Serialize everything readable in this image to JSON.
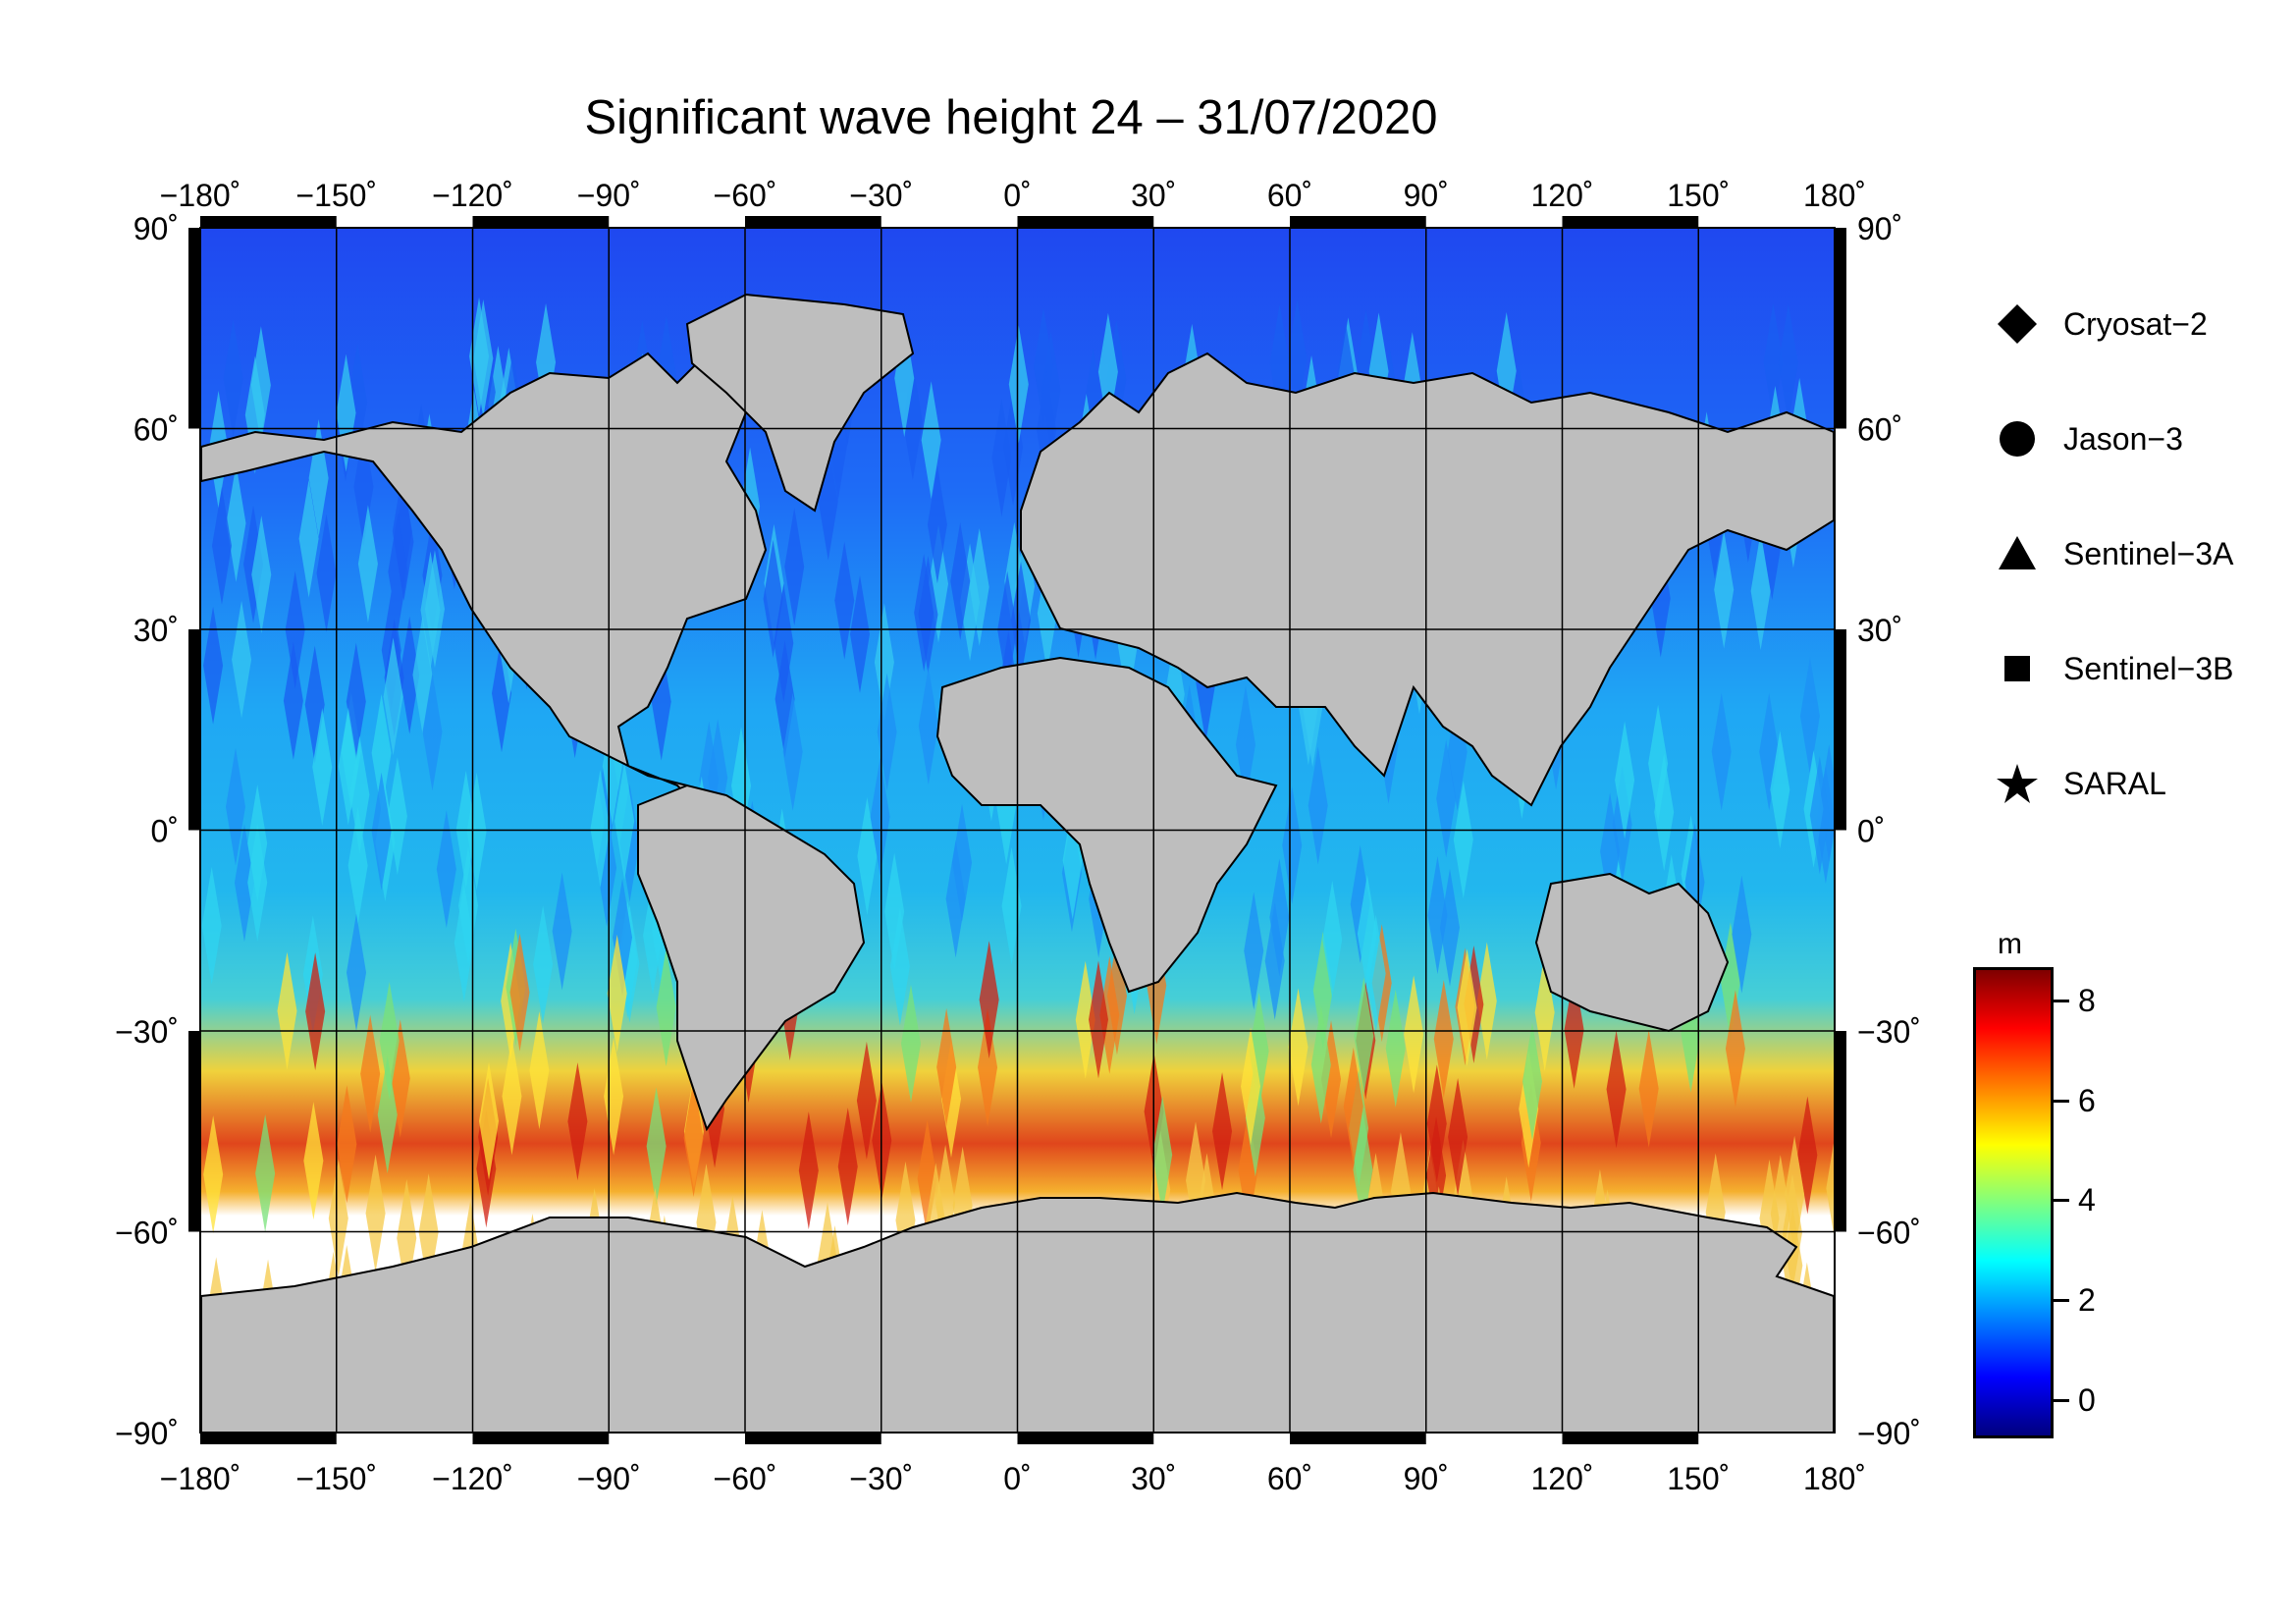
{
  "title": "Significant wave height 24 – 31/07/2020",
  "map": {
    "lon_ticks": [
      "−180˚",
      "−150˚",
      "−120˚",
      "−90˚",
      "−60˚",
      "−30˚",
      "0˚",
      "30˚",
      "60˚",
      "90˚",
      "120˚",
      "150˚",
      "180˚"
    ],
    "lat_ticks": [
      "90˚",
      "60˚",
      "30˚",
      "0˚",
      "−30˚",
      "−60˚",
      "−90˚"
    ],
    "lon_range": [
      -180,
      180
    ],
    "lat_range": [
      -90,
      90
    ],
    "land_color": "#bebebe",
    "ice_color": "#ffffff",
    "grid": true
  },
  "legend": {
    "items": [
      {
        "label": "Cryosat−2",
        "marker": "diamond"
      },
      {
        "label": "Jason−3",
        "marker": "circle"
      },
      {
        "label": "Sentinel−3A",
        "marker": "triangle"
      },
      {
        "label": "Sentinel−3B",
        "marker": "square"
      },
      {
        "label": "SARAL",
        "marker": "star"
      }
    ]
  },
  "colorbar": {
    "unit": "m",
    "range": [
      -0.7,
      8.6
    ],
    "ticks": [
      "8",
      "6",
      "4",
      "2",
      "0"
    ],
    "tick_values": [
      8,
      6,
      4,
      2,
      0
    ],
    "colors": [
      "#00007f",
      "#0000ff",
      "#007fff",
      "#00ffff",
      "#7fff7f",
      "#ffff00",
      "#ff7f00",
      "#ff0000",
      "#7f0000"
    ]
  }
}
